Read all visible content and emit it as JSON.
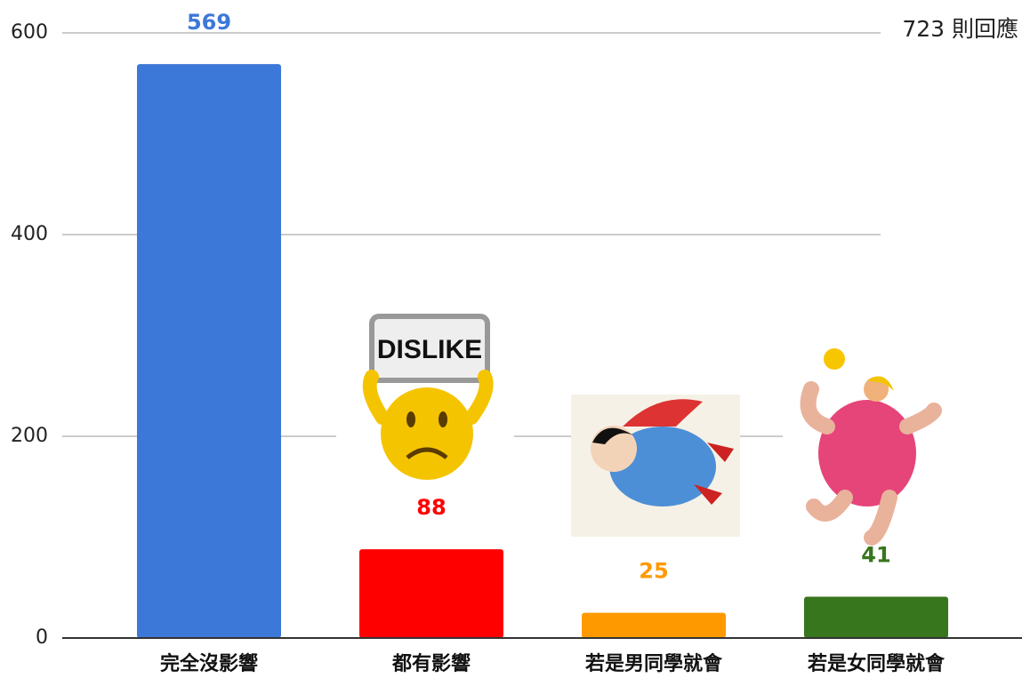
{
  "chart_data": {
    "type": "bar",
    "categories": [
      "完全沒影響",
      "都有影響",
      "若是男同學就會",
      "若是女同學就會"
    ],
    "values": [
      569,
      88,
      25,
      41
    ],
    "colors": [
      "#3c78d8",
      "#ff0000",
      "#ff9900",
      "#38761d"
    ],
    "ylim": [
      0,
      600
    ],
    "yticks": [
      0,
      200,
      400,
      600
    ],
    "grid": true,
    "annotation": "723 則回應",
    "sticker_text": "DISLIKE"
  }
}
